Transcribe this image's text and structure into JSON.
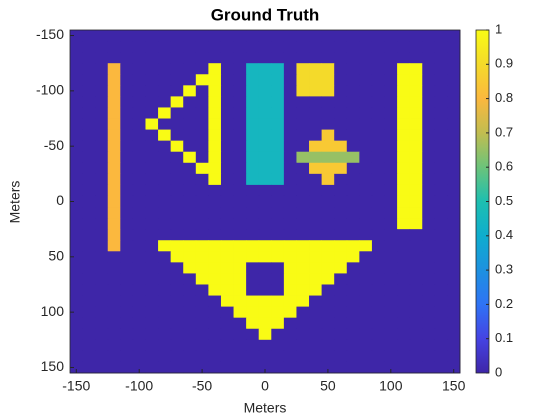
{
  "chart_data": {
    "type": "heatmap",
    "title": "Ground Truth",
    "xlabel": "Meters",
    "ylabel": "Meters",
    "x": [
      -150,
      -140,
      -130,
      -120,
      -110,
      -100,
      -90,
      -80,
      -70,
      -60,
      -50,
      -40,
      -30,
      -20,
      -10,
      0,
      10,
      20,
      30,
      40,
      50,
      60,
      70,
      80,
      90,
      100,
      110,
      120,
      130,
      140,
      150
    ],
    "y": [
      -150,
      -140,
      -130,
      -120,
      -110,
      -100,
      -90,
      -80,
      -70,
      -60,
      -50,
      -40,
      -30,
      -20,
      -10,
      0,
      10,
      20,
      30,
      40,
      50,
      60,
      70,
      80,
      90,
      100,
      110,
      120,
      130,
      140,
      150
    ],
    "z": [
      [
        0,
        0,
        0,
        0,
        0,
        0,
        0,
        0,
        0,
        0,
        0,
        0,
        0,
        0,
        0,
        0,
        0,
        0,
        0,
        0,
        0,
        0,
        0,
        0,
        0,
        0,
        0,
        0,
        0,
        0,
        0
      ],
      [
        0,
        0,
        0,
        0,
        0,
        0,
        0,
        0,
        0,
        0,
        0,
        0,
        0,
        0,
        0,
        0,
        0,
        0,
        0,
        0,
        0,
        0,
        0,
        0,
        0,
        0,
        0,
        0,
        0,
        0,
        0
      ],
      [
        0,
        0,
        0,
        0,
        0,
        0,
        0,
        0,
        0,
        0,
        0,
        0,
        0,
        0,
        0,
        0,
        0,
        0,
        0,
        0,
        0,
        0,
        0,
        0,
        0,
        0,
        0,
        0,
        0,
        0,
        0
      ],
      [
        0,
        0,
        0,
        0.8,
        0,
        0,
        0,
        0,
        0,
        0,
        0,
        1,
        0,
        0,
        0.45,
        0.45,
        0.45,
        0,
        0.9,
        0.9,
        0.9,
        0,
        0,
        0,
        0,
        0,
        1,
        1,
        0,
        0,
        0
      ],
      [
        0,
        0,
        0,
        0.8,
        0,
        0,
        0,
        0,
        0,
        0,
        1,
        1,
        0,
        0,
        0.45,
        0.45,
        0.45,
        0,
        0.9,
        0.9,
        0.9,
        0,
        0,
        0,
        0,
        0,
        1,
        1,
        0,
        0,
        0
      ],
      [
        0,
        0,
        0,
        0.8,
        0,
        0,
        0,
        0,
        0,
        1,
        0,
        1,
        0,
        0,
        0.45,
        0.45,
        0.45,
        0,
        0.9,
        0.9,
        0.9,
        0,
        0,
        0,
        0,
        0,
        1,
        1,
        0,
        0,
        0
      ],
      [
        0,
        0,
        0,
        0.8,
        0,
        0,
        0,
        0,
        1,
        0,
        0,
        1,
        0,
        0,
        0.45,
        0.45,
        0.45,
        0,
        0,
        0,
        0,
        0,
        0,
        0,
        0,
        0,
        1,
        1,
        0,
        0,
        0
      ],
      [
        0,
        0,
        0,
        0.8,
        0,
        0,
        0,
        1,
        0,
        0,
        0,
        1,
        0,
        0,
        0.45,
        0.45,
        0.45,
        0,
        0,
        0,
        0,
        0,
        0,
        0,
        0,
        0,
        1,
        1,
        0,
        0,
        0
      ],
      [
        0,
        0,
        0,
        0.8,
        0,
        0,
        1,
        0,
        0,
        0,
        0,
        1,
        0,
        0,
        0.45,
        0.45,
        0.45,
        0,
        0,
        0,
        0,
        0,
        0,
        0,
        0,
        0,
        1,
        1,
        0,
        0,
        0
      ],
      [
        0,
        0,
        0,
        0.8,
        0,
        0,
        0,
        1,
        0,
        0,
        0,
        1,
        0,
        0,
        0.45,
        0.45,
        0.45,
        0,
        0,
        0,
        0.85,
        0,
        0,
        0,
        0,
        0,
        1,
        1,
        0,
        0,
        0
      ],
      [
        0,
        0,
        0,
        0.8,
        0,
        0,
        0,
        0,
        1,
        0,
        0,
        1,
        0,
        0,
        0.45,
        0.45,
        0.45,
        0,
        0,
        0.85,
        0.85,
        0.85,
        0,
        0,
        0,
        0,
        1,
        1,
        0,
        0,
        0
      ],
      [
        0,
        0,
        0,
        0.8,
        0,
        0,
        0,
        0,
        0,
        1,
        0,
        1,
        0,
        0,
        0.45,
        0.45,
        0.45,
        0,
        0.65,
        0.65,
        0.65,
        0.65,
        0.65,
        0,
        0,
        0,
        1,
        1,
        0,
        0,
        0
      ],
      [
        0,
        0,
        0,
        0.8,
        0,
        0,
        0,
        0,
        0,
        0,
        1,
        1,
        0,
        0,
        0.45,
        0.45,
        0.45,
        0,
        0,
        0.85,
        0.85,
        0.85,
        0,
        0,
        0,
        0,
        1,
        1,
        0,
        0,
        0
      ],
      [
        0,
        0,
        0,
        0.8,
        0,
        0,
        0,
        0,
        0,
        0,
        0,
        1,
        0,
        0,
        0.45,
        0.45,
        0.45,
        0,
        0,
        0,
        0.85,
        0,
        0,
        0,
        0,
        0,
        1,
        1,
        0,
        0,
        0
      ],
      [
        0,
        0,
        0,
        0.8,
        0,
        0,
        0,
        0,
        0,
        0,
        0,
        0,
        0,
        0,
        0,
        0,
        0,
        0,
        0,
        0,
        0,
        0,
        0,
        0,
        0,
        0,
        1,
        1,
        0,
        0,
        0
      ],
      [
        0,
        0,
        0,
        0.8,
        0,
        0,
        0,
        0,
        0,
        0,
        0,
        0,
        0,
        0,
        0,
        0,
        0,
        0,
        0,
        0,
        0,
        0,
        0,
        0,
        0,
        0,
        1,
        1,
        0,
        0,
        0
      ],
      [
        0,
        0,
        0,
        0.8,
        0,
        0,
        0,
        0,
        0,
        0,
        0,
        0,
        0,
        0,
        0,
        0,
        0,
        0,
        0,
        0,
        0,
        0,
        0,
        0,
        0,
        0,
        1,
        1,
        0,
        0,
        0
      ],
      [
        0,
        0,
        0,
        0.8,
        0,
        0,
        0,
        0,
        0,
        0,
        0,
        0,
        0,
        0,
        0,
        0,
        0,
        0,
        0,
        0,
        0,
        0,
        0,
        0,
        0,
        0,
        1,
        1,
        0,
        0,
        0
      ],
      [
        0,
        0,
        0,
        0.8,
        0,
        0,
        0,
        0,
        0,
        0,
        0,
        0,
        0,
        0,
        0,
        0,
        0,
        0,
        0,
        0,
        0,
        0,
        0,
        0,
        0,
        0,
        0,
        0,
        0,
        0,
        0
      ],
      [
        0,
        0,
        0,
        0.8,
        0,
        0,
        0,
        1,
        1,
        1,
        1,
        1,
        1,
        1,
        1,
        1,
        1,
        1,
        1,
        1,
        1,
        1,
        1,
        1,
        0,
        0,
        0,
        0,
        0,
        0,
        0
      ],
      [
        0,
        0,
        0,
        0,
        0,
        0,
        0,
        0,
        1,
        1,
        1,
        1,
        1,
        1,
        1,
        1,
        1,
        1,
        1,
        1,
        1,
        1,
        1,
        0,
        0,
        0,
        0,
        0,
        0,
        0,
        0
      ],
      [
        0,
        0,
        0,
        0,
        0,
        0,
        0,
        0,
        0,
        1,
        1,
        1,
        1,
        1,
        0,
        0,
        0,
        1,
        1,
        1,
        1,
        1,
        0,
        0,
        0,
        0,
        0,
        0,
        0,
        0,
        0
      ],
      [
        0,
        0,
        0,
        0,
        0,
        0,
        0,
        0,
        0,
        0,
        1,
        1,
        1,
        1,
        0,
        0,
        0,
        1,
        1,
        1,
        1,
        0,
        0,
        0,
        0,
        0,
        0,
        0,
        0,
        0,
        0
      ],
      [
        0,
        0,
        0,
        0,
        0,
        0,
        0,
        0,
        0,
        0,
        0,
        1,
        1,
        1,
        0,
        0,
        0,
        1,
        1,
        1,
        0,
        0,
        0,
        0,
        0,
        0,
        0,
        0,
        0,
        0,
        0
      ],
      [
        0,
        0,
        0,
        0,
        0,
        0,
        0,
        0,
        0,
        0,
        0,
        0,
        1,
        1,
        1,
        1,
        1,
        1,
        1,
        0,
        0,
        0,
        0,
        0,
        0,
        0,
        0,
        0,
        0,
        0,
        0
      ],
      [
        0,
        0,
        0,
        0,
        0,
        0,
        0,
        0,
        0,
        0,
        0,
        0,
        0,
        1,
        1,
        1,
        1,
        1,
        0,
        0,
        0,
        0,
        0,
        0,
        0,
        0,
        0,
        0,
        0,
        0,
        0
      ],
      [
        0,
        0,
        0,
        0,
        0,
        0,
        0,
        0,
        0,
        0,
        0,
        0,
        0,
        0,
        1,
        1,
        1,
        0,
        0,
        0,
        0,
        0,
        0,
        0,
        0,
        0,
        0,
        0,
        0,
        0,
        0
      ],
      [
        0,
        0,
        0,
        0,
        0,
        0,
        0,
        0,
        0,
        0,
        0,
        0,
        0,
        0,
        0,
        1,
        0,
        0,
        0,
        0,
        0,
        0,
        0,
        0,
        0,
        0,
        0,
        0,
        0,
        0,
        0
      ],
      [
        0,
        0,
        0,
        0,
        0,
        0,
        0,
        0,
        0,
        0,
        0,
        0,
        0,
        0,
        0,
        0,
        0,
        0,
        0,
        0,
        0,
        0,
        0,
        0,
        0,
        0,
        0,
        0,
        0,
        0,
        0
      ],
      [
        0,
        0,
        0,
        0,
        0,
        0,
        0,
        0,
        0,
        0,
        0,
        0,
        0,
        0,
        0,
        0,
        0,
        0,
        0,
        0,
        0,
        0,
        0,
        0,
        0,
        0,
        0,
        0,
        0,
        0,
        0
      ],
      [
        0,
        0,
        0,
        0,
        0,
        0,
        0,
        0,
        0,
        0,
        0,
        0,
        0,
        0,
        0,
        0,
        0,
        0,
        0,
        0,
        0,
        0,
        0,
        0,
        0,
        0,
        0,
        0,
        0,
        0,
        0
      ]
    ],
    "xlim": [
      -155,
      155
    ],
    "ylim": [
      -155,
      155
    ],
    "y_reversed": true,
    "xticks": [
      -150,
      -100,
      -50,
      0,
      50,
      100,
      150
    ],
    "yticks": [
      -150,
      -100,
      -50,
      0,
      50,
      100,
      150
    ],
    "clim": [
      0,
      1
    ],
    "cticks": [
      0,
      0.1,
      0.2,
      0.3,
      0.4,
      0.5,
      0.6,
      0.7,
      0.8,
      0.9,
      1
    ],
    "colormap": [
      "#3e26a8",
      "#4543e3",
      "#2f73f5",
      "#1d91e0",
      "#0eadce",
      "#1dbfb0",
      "#6cc37a",
      "#c1bd50",
      "#fbb83e",
      "#f4da2a",
      "#f9fb15"
    ]
  }
}
